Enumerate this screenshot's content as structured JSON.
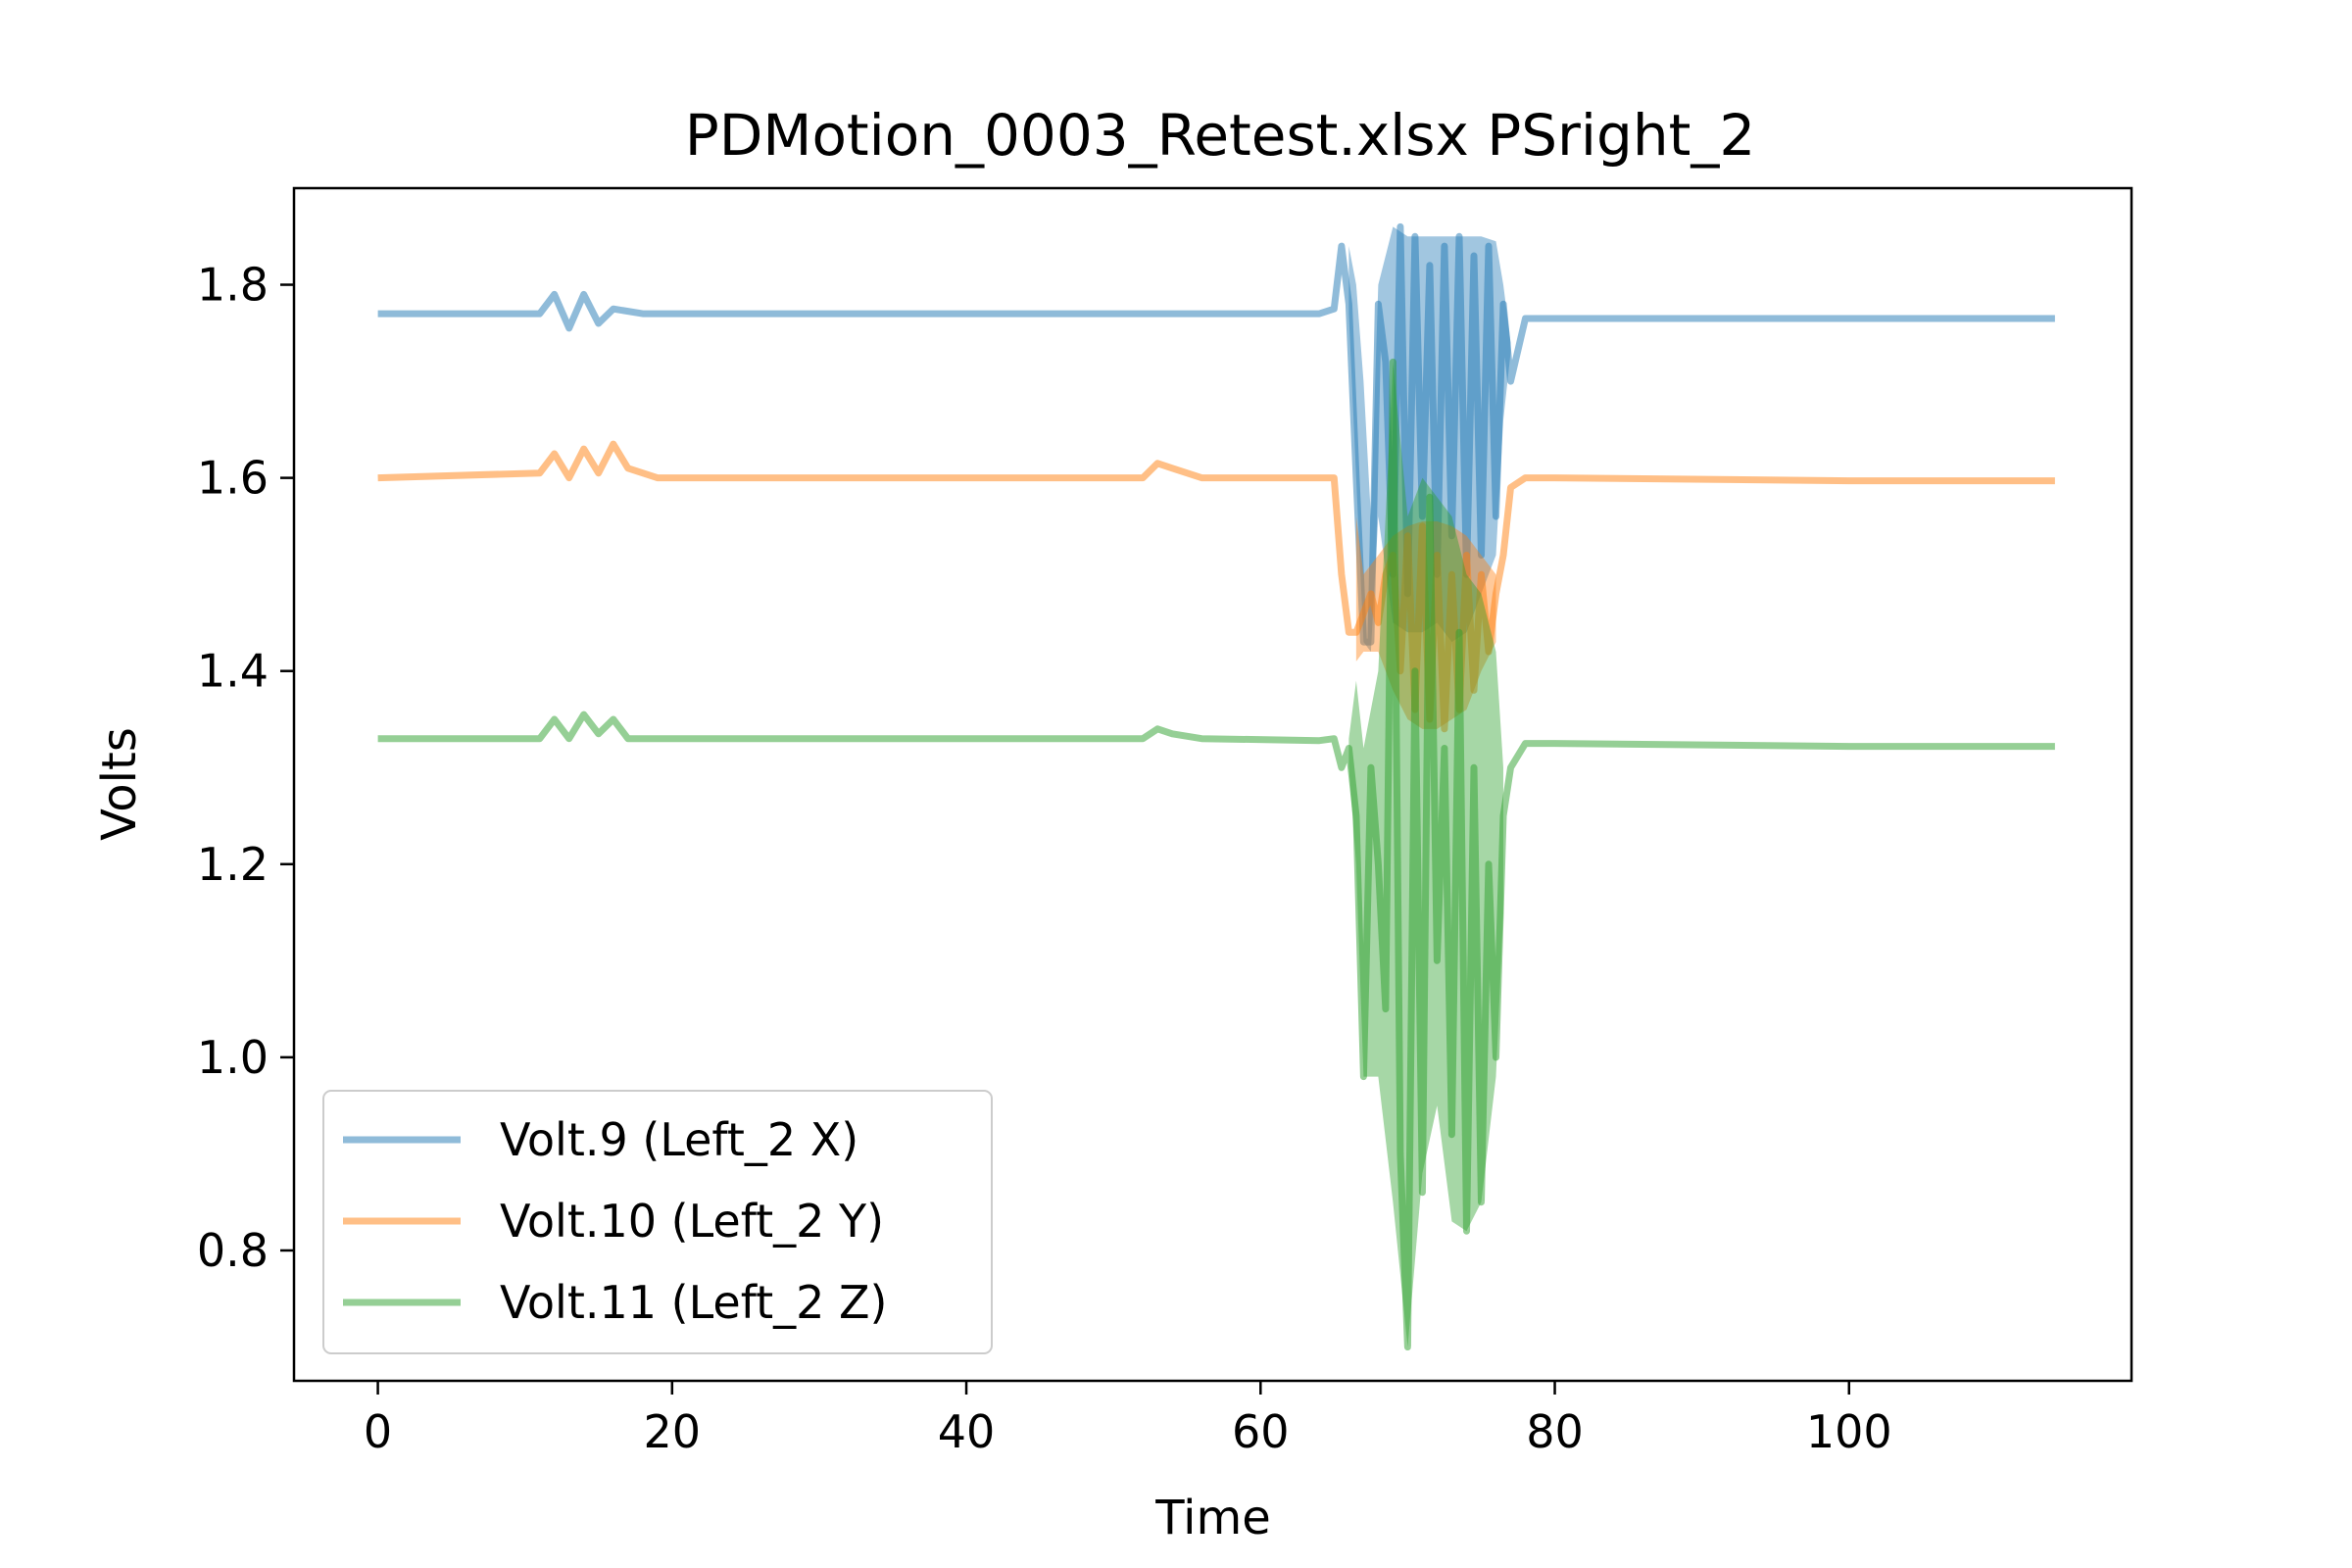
{
  "chart_data": {
    "type": "line",
    "title": "PDMotion_0003_Retest.xlsx PSright_2",
    "xlabel": "Time",
    "ylabel": "Volts",
    "xlim": [
      -5.7,
      119.2
    ],
    "ylim": [
      0.665,
      1.9
    ],
    "xticks": [
      0,
      20,
      40,
      60,
      80,
      100
    ],
    "yticks": [
      0.8,
      1.0,
      1.2,
      1.4,
      1.6,
      1.8
    ],
    "xtick_labels": [
      "0",
      "20",
      "40",
      "60",
      "80",
      "100"
    ],
    "ytick_labels": [
      "0.8",
      "1.0",
      "1.2",
      "1.4",
      "1.6",
      "1.8"
    ],
    "grid": false,
    "legend_position": "lower-left",
    "series": [
      {
        "name": "Volt.9 (Left_2 X)",
        "color": "#1f77b4",
        "points": [
          [
            0,
            1.77
          ],
          [
            11,
            1.77
          ],
          [
            12,
            1.79
          ],
          [
            13,
            1.755
          ],
          [
            14,
            1.79
          ],
          [
            15,
            1.76
          ],
          [
            16,
            1.775
          ],
          [
            18,
            1.77
          ],
          [
            40,
            1.77
          ],
          [
            64,
            1.77
          ],
          [
            65,
            1.775
          ],
          [
            65.5,
            1.84
          ],
          [
            66,
            1.78
          ],
          [
            66.5,
            1.6
          ],
          [
            67,
            1.43
          ],
          [
            67.5,
            1.43
          ],
          [
            68,
            1.78
          ],
          [
            68.5,
            1.72
          ],
          [
            69,
            1.5
          ],
          [
            69.5,
            1.86
          ],
          [
            70,
            1.48
          ],
          [
            70.5,
            1.85
          ],
          [
            71,
            1.56
          ],
          [
            71.5,
            1.82
          ],
          [
            72,
            1.5
          ],
          [
            72.5,
            1.84
          ],
          [
            73,
            1.54
          ],
          [
            73.5,
            1.85
          ],
          [
            74,
            1.5
          ],
          [
            74.5,
            1.83
          ],
          [
            75,
            1.52
          ],
          [
            75.5,
            1.84
          ],
          [
            76,
            1.56
          ],
          [
            76.5,
            1.78
          ],
          [
            77,
            1.7
          ],
          [
            78,
            1.765
          ],
          [
            80,
            1.765
          ],
          [
            100,
            1.765
          ],
          [
            114,
            1.765
          ]
        ],
        "upper": [
          [
            66,
            1.84
          ],
          [
            66.5,
            1.8
          ],
          [
            67,
            1.7
          ],
          [
            67.5,
            1.56
          ],
          [
            68,
            1.8
          ],
          [
            69,
            1.86
          ],
          [
            70,
            1.85
          ],
          [
            71,
            1.85
          ],
          [
            72,
            1.85
          ],
          [
            73,
            1.85
          ],
          [
            74,
            1.85
          ],
          [
            75,
            1.85
          ],
          [
            76,
            1.845
          ],
          [
            76.5,
            1.8
          ],
          [
            77,
            1.74
          ]
        ],
        "lower": [
          [
            66,
            1.77
          ],
          [
            66.5,
            1.6
          ],
          [
            67,
            1.43
          ],
          [
            67.5,
            1.42
          ],
          [
            68,
            1.56
          ],
          [
            69,
            1.45
          ],
          [
            70,
            1.44
          ],
          [
            71,
            1.44
          ],
          [
            72,
            1.45
          ],
          [
            73,
            1.43
          ],
          [
            74,
            1.44
          ],
          [
            75,
            1.48
          ],
          [
            76,
            1.52
          ],
          [
            76.5,
            1.66
          ],
          [
            77,
            1.73
          ]
        ]
      },
      {
        "name": "Volt.10 (Left_2 Y)",
        "color": "#ff7f0e",
        "points": [
          [
            0,
            1.6
          ],
          [
            11,
            1.605
          ],
          [
            12,
            1.625
          ],
          [
            13,
            1.6
          ],
          [
            14,
            1.63
          ],
          [
            15,
            1.605
          ],
          [
            16,
            1.635
          ],
          [
            17,
            1.61
          ],
          [
            19,
            1.6
          ],
          [
            40,
            1.6
          ],
          [
            52,
            1.6
          ],
          [
            53,
            1.615
          ],
          [
            54,
            1.61
          ],
          [
            55,
            1.605
          ],
          [
            56,
            1.6
          ],
          [
            64,
            1.6
          ],
          [
            65,
            1.6
          ],
          [
            65.5,
            1.5
          ],
          [
            66,
            1.44
          ],
          [
            66.5,
            1.44
          ],
          [
            67,
            1.46
          ],
          [
            67.5,
            1.48
          ],
          [
            68,
            1.45
          ],
          [
            68.5,
            1.5
          ],
          [
            69,
            1.52
          ],
          [
            69.5,
            1.4
          ],
          [
            70,
            1.54
          ],
          [
            70.5,
            1.36
          ],
          [
            71,
            1.55
          ],
          [
            71.5,
            1.35
          ],
          [
            72,
            1.52
          ],
          [
            72.5,
            1.34
          ],
          [
            73,
            1.5
          ],
          [
            73.5,
            1.36
          ],
          [
            74,
            1.52
          ],
          [
            74.5,
            1.38
          ],
          [
            75,
            1.5
          ],
          [
            75.5,
            1.42
          ],
          [
            76,
            1.48
          ],
          [
            76.5,
            1.52
          ],
          [
            77,
            1.59
          ],
          [
            78,
            1.6
          ],
          [
            80,
            1.6
          ],
          [
            100,
            1.597
          ],
          [
            114,
            1.597
          ]
        ],
        "upper": [
          [
            66.5,
            1.56
          ],
          [
            67,
            1.5
          ],
          [
            68,
            1.52
          ],
          [
            69,
            1.54
          ],
          [
            70,
            1.55
          ],
          [
            71,
            1.555
          ],
          [
            72,
            1.555
          ],
          [
            73,
            1.55
          ],
          [
            74,
            1.54
          ],
          [
            75,
            1.52
          ],
          [
            76,
            1.5
          ]
        ],
        "lower": [
          [
            66.5,
            1.41
          ],
          [
            67,
            1.42
          ],
          [
            68,
            1.42
          ],
          [
            69,
            1.38
          ],
          [
            70,
            1.35
          ],
          [
            71,
            1.34
          ],
          [
            72,
            1.34
          ],
          [
            73,
            1.35
          ],
          [
            74,
            1.36
          ],
          [
            75,
            1.4
          ],
          [
            76,
            1.43
          ]
        ]
      },
      {
        "name": "Volt.11 (Left_2 Z)",
        "color": "#2ca02c",
        "points": [
          [
            0,
            1.33
          ],
          [
            11,
            1.33
          ],
          [
            12,
            1.35
          ],
          [
            13,
            1.33
          ],
          [
            14,
            1.355
          ],
          [
            15,
            1.335
          ],
          [
            16,
            1.35
          ],
          [
            17,
            1.33
          ],
          [
            19,
            1.33
          ],
          [
            40,
            1.33
          ],
          [
            52,
            1.33
          ],
          [
            53,
            1.34
          ],
          [
            54,
            1.335
          ],
          [
            56,
            1.33
          ],
          [
            64,
            1.328
          ],
          [
            65,
            1.33
          ],
          [
            65.5,
            1.3
          ],
          [
            66,
            1.32
          ],
          [
            66.5,
            1.25
          ],
          [
            67,
            0.98
          ],
          [
            67.5,
            1.3
          ],
          [
            68,
            1.2
          ],
          [
            68.5,
            1.05
          ],
          [
            69,
            1.72
          ],
          [
            69.5,
            0.9
          ],
          [
            70,
            0.7
          ],
          [
            70.5,
            1.4
          ],
          [
            71,
            0.86
          ],
          [
            71.5,
            1.58
          ],
          [
            72,
            1.1
          ],
          [
            72.5,
            1.32
          ],
          [
            73,
            0.92
          ],
          [
            73.5,
            1.44
          ],
          [
            74,
            0.82
          ],
          [
            74.5,
            1.3
          ],
          [
            75,
            0.85
          ],
          [
            75.5,
            1.2
          ],
          [
            76,
            1.0
          ],
          [
            76.5,
            1.25
          ],
          [
            77,
            1.3
          ],
          [
            78,
            1.325
          ],
          [
            80,
            1.325
          ],
          [
            100,
            1.322
          ],
          [
            114,
            1.322
          ]
        ],
        "upper": [
          [
            66,
            1.33
          ],
          [
            66.5,
            1.39
          ],
          [
            67,
            1.32
          ],
          [
            68,
            1.4
          ],
          [
            69,
            1.72
          ],
          [
            70,
            1.56
          ],
          [
            71,
            1.6
          ],
          [
            72,
            1.58
          ],
          [
            73,
            1.56
          ],
          [
            74,
            1.5
          ],
          [
            75,
            1.48
          ],
          [
            76,
            1.42
          ],
          [
            76.5,
            1.3
          ]
        ],
        "lower": [
          [
            66,
            1.3
          ],
          [
            66.5,
            1.2
          ],
          [
            67,
            0.98
          ],
          [
            68,
            0.98
          ],
          [
            69,
            0.85
          ],
          [
            70,
            0.7
          ],
          [
            71,
            0.88
          ],
          [
            72,
            0.95
          ],
          [
            73,
            0.83
          ],
          [
            74,
            0.82
          ],
          [
            75,
            0.85
          ],
          [
            76,
            0.98
          ],
          [
            76.5,
            1.15
          ]
        ]
      }
    ]
  }
}
